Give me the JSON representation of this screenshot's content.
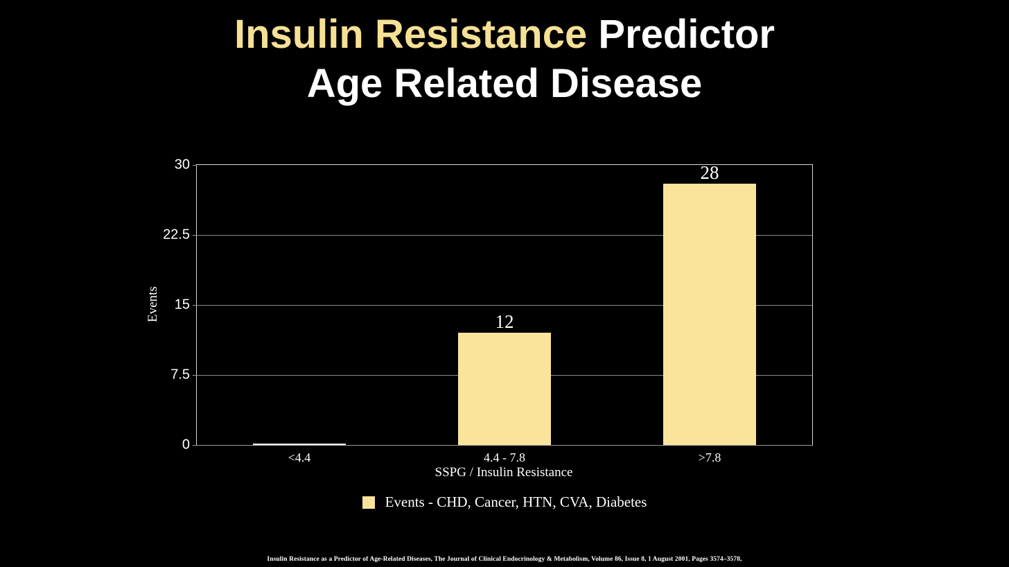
{
  "title": {
    "highlight": "Insulin Resistance",
    "rest": " Predictor",
    "line2": "Age Related Disease"
  },
  "chart_data": {
    "type": "bar",
    "title": "Insulin Resistance Predictor Age Related Disease",
    "categories": [
      "<4.4",
      "4.4 - 7.8",
      ">7.8"
    ],
    "values": [
      0,
      12,
      28
    ],
    "bar_labels": [
      "",
      "12",
      "28"
    ],
    "xlabel": "SSPG / Insulin Resistance",
    "ylabel": "Events",
    "ylim": [
      0,
      30
    ],
    "yticks": [
      30,
      22.5,
      15,
      7.5,
      0
    ],
    "ytick_labels": [
      "30",
      "22.5",
      "15",
      "7.5",
      "0"
    ],
    "grid": true,
    "bar_color": "#fae49c",
    "zero_bar_color": "#ffffff",
    "legend": {
      "position": "bottom",
      "entries": [
        {
          "label": "Events - CHD, Cancer, HTN, CVA, Diabetes",
          "color": "#fae49c"
        }
      ]
    }
  },
  "footer": {
    "citation": "Insulin Resistance as a Predictor of Age-Related Diseases, The Journal of Clinical Endocrinology & Metabolism, Volume 86, Issue 8, 1 August 2001, Pages 3574–3578,"
  },
  "colors": {
    "background": "#000000",
    "title_highlight": "#f6e095",
    "title_text": "#ffffff",
    "gridline": "#8a8a8a",
    "axis_border": "#d9d9d9"
  }
}
